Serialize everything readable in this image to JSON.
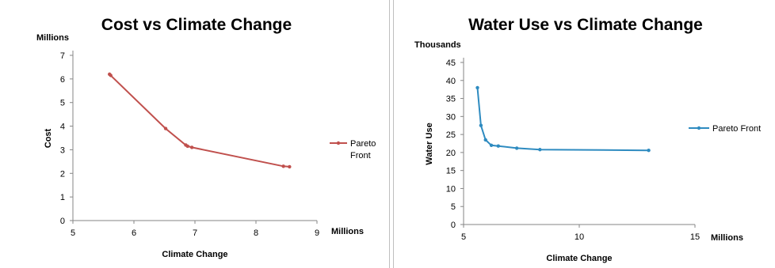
{
  "chart_data": [
    {
      "type": "scatter",
      "title": "Cost vs Climate Change",
      "xlabel": "Climate Change",
      "ylabel": "Cost",
      "x_unit": "Millions",
      "y_unit": "Millions",
      "xlim": [
        5,
        9
      ],
      "ylim": [
        0,
        7
      ],
      "x_ticks": [
        5,
        6,
        7,
        8,
        9
      ],
      "y_ticks": [
        0,
        1,
        2,
        3,
        4,
        5,
        6,
        7
      ],
      "grid": false,
      "legend_position": "right",
      "color": "#c0504d",
      "series": [
        {
          "name": "Pareto Front",
          "points": [
            [
              5.6,
              6.2
            ],
            [
              5.62,
              6.15
            ],
            [
              6.52,
              3.9
            ],
            [
              6.85,
              3.2
            ],
            [
              6.88,
              3.15
            ],
            [
              6.95,
              3.1
            ],
            [
              8.45,
              2.3
            ],
            [
              8.55,
              2.28
            ]
          ]
        }
      ]
    },
    {
      "type": "scatter",
      "title": "Water Use vs Climate Change",
      "xlabel": "Climate Change",
      "ylabel": "Water Use",
      "x_unit": "Millions",
      "y_unit": "Thousands",
      "xlim": [
        5,
        15
      ],
      "ylim": [
        0,
        45
      ],
      "x_ticks": [
        5,
        10,
        15
      ],
      "y_ticks": [
        0,
        5,
        10,
        15,
        20,
        25,
        30,
        35,
        40,
        45
      ],
      "grid": false,
      "legend_position": "right",
      "color": "#2e8bc0",
      "series": [
        {
          "name": "Pareto Front",
          "points": [
            [
              5.6,
              38
            ],
            [
              5.75,
              27.5
            ],
            [
              5.95,
              23.5
            ],
            [
              6.2,
              22
            ],
            [
              6.5,
              21.8
            ],
            [
              7.3,
              21.2
            ],
            [
              8.3,
              20.8
            ],
            [
              13.0,
              20.6
            ]
          ]
        }
      ]
    }
  ]
}
